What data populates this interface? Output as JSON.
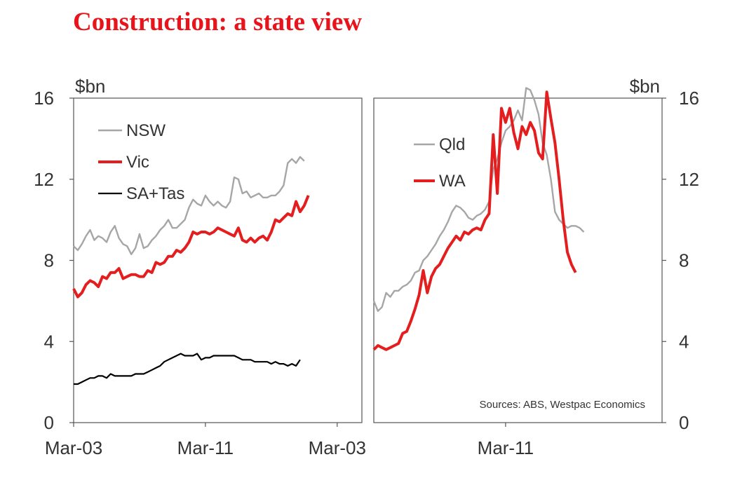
{
  "slide": {
    "title": "Construction: a state view"
  },
  "colors": {
    "title": "#e8141b",
    "nsw": "#a6a6a6",
    "vic": "#e41e1e",
    "satas": "#000000",
    "qld": "#a6a6a6",
    "wa": "#e41e1e",
    "frame": "#555555"
  },
  "chart_data": [
    {
      "type": "line",
      "title": "",
      "ylabel": "$bn",
      "ylim": [
        0,
        16
      ],
      "yticks": [
        0,
        4,
        8,
        12,
        16
      ],
      "xlim": [
        0,
        70
      ],
      "xticks": [
        {
          "x": 0,
          "label": "Mar-03"
        },
        {
          "x": 32,
          "label": "Mar-11"
        },
        {
          "x": 64,
          "label": "Mar-03"
        }
      ],
      "legend": "top-left",
      "series": [
        {
          "name": "NSW",
          "color": "#a6a6a6",
          "values": [
            8.7,
            8.5,
            8.8,
            9.2,
            9.5,
            9.0,
            9.2,
            9.1,
            8.9,
            9.4,
            9.7,
            9.1,
            8.8,
            8.7,
            8.3,
            8.6,
            9.3,
            8.6,
            8.7,
            9.0,
            9.2,
            9.5,
            9.7,
            10.0,
            9.6,
            9.6,
            9.8,
            10.0,
            10.6,
            11.0,
            10.8,
            10.7,
            11.2,
            10.9,
            10.7,
            10.9,
            10.7,
            10.6,
            10.9,
            12.1,
            12.0,
            11.3,
            11.4,
            11.1,
            11.2,
            11.3,
            11.1,
            11.1,
            11.2,
            11.2,
            11.4,
            11.7,
            12.8,
            13.0,
            12.8,
            13.1,
            12.9
          ]
        },
        {
          "name": "Vic",
          "color": "#e41e1e",
          "values": [
            6.6,
            6.2,
            6.4,
            6.8,
            7.0,
            6.9,
            6.7,
            7.2,
            7.1,
            7.4,
            7.4,
            7.6,
            7.1,
            7.2,
            7.3,
            7.3,
            7.2,
            7.2,
            7.5,
            7.4,
            7.9,
            7.8,
            7.9,
            8.2,
            8.2,
            8.5,
            8.4,
            8.6,
            8.9,
            9.4,
            9.3,
            9.4,
            9.4,
            9.3,
            9.4,
            9.6,
            9.5,
            9.4,
            9.3,
            9.2,
            9.6,
            9.0,
            8.9,
            9.1,
            8.9,
            9.1,
            9.2,
            9.0,
            9.4,
            10.0,
            9.9,
            10.1,
            10.3,
            10.2,
            10.9,
            10.4,
            10.7,
            11.2
          ]
        },
        {
          "name": "SA+Tas",
          "color": "#000000",
          "values": [
            1.9,
            1.9,
            2.0,
            2.1,
            2.2,
            2.2,
            2.3,
            2.3,
            2.2,
            2.4,
            2.3,
            2.3,
            2.3,
            2.3,
            2.3,
            2.4,
            2.4,
            2.4,
            2.5,
            2.6,
            2.7,
            2.8,
            3.0,
            3.1,
            3.2,
            3.3,
            3.4,
            3.3,
            3.3,
            3.3,
            3.4,
            3.1,
            3.2,
            3.2,
            3.3,
            3.3,
            3.3,
            3.3,
            3.3,
            3.3,
            3.2,
            3.1,
            3.1,
            3.1,
            3.0,
            3.0,
            3.0,
            3.0,
            2.9,
            3.0,
            2.9,
            2.9,
            2.8,
            2.9,
            2.8,
            3.1
          ]
        }
      ]
    },
    {
      "type": "line",
      "title": "",
      "ylabel": "$bn",
      "ylim": [
        0,
        16
      ],
      "yticks": [
        0,
        4,
        8,
        12,
        16
      ],
      "xlim": [
        0,
        70
      ],
      "xticks": [
        {
          "x": 32,
          "label": "Mar-11"
        }
      ],
      "legend": "top-left",
      "annotation": "Sources: ABS, Westpac Economics",
      "series": [
        {
          "name": "Qld",
          "color": "#a6a6a6",
          "values": [
            6.0,
            5.5,
            5.7,
            6.4,
            6.2,
            6.5,
            6.5,
            6.7,
            6.8,
            7.0,
            7.4,
            7.5,
            8.0,
            8.2,
            8.5,
            8.8,
            9.2,
            9.5,
            9.9,
            10.4,
            10.7,
            10.6,
            10.4,
            10.1,
            10.0,
            10.2,
            10.3,
            10.5,
            10.9,
            12.5,
            13.0,
            13.8,
            14.4,
            14.6,
            14.9,
            15.4,
            14.9,
            16.5,
            16.4,
            15.9,
            15.2,
            13.8,
            13.2,
            12.0,
            10.4,
            10.0,
            9.8,
            9.6,
            9.7,
            9.7,
            9.6,
            9.4
          ]
        },
        {
          "name": "WA",
          "color": "#e41e1e",
          "values": [
            3.6,
            3.8,
            3.7,
            3.6,
            3.7,
            3.8,
            3.9,
            4.4,
            4.5,
            5.0,
            5.6,
            6.3,
            7.5,
            6.4,
            7.2,
            7.6,
            7.8,
            8.2,
            8.6,
            8.9,
            9.2,
            9.0,
            9.4,
            9.3,
            9.5,
            9.6,
            9.5,
            10.0,
            10.3,
            14.2,
            11.3,
            15.5,
            14.8,
            15.5,
            14.3,
            13.5,
            14.6,
            14.2,
            14.8,
            14.4,
            13.3,
            13.0,
            16.3,
            15.0,
            13.8,
            12.0,
            10.0,
            8.4,
            7.8,
            7.4
          ]
        }
      ]
    }
  ]
}
